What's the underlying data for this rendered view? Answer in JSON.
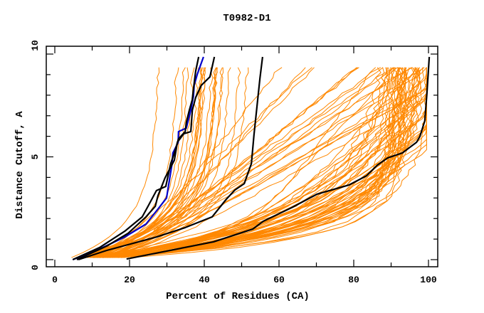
{
  "chart_data": {
    "type": "line",
    "title": "T0982-D1",
    "xlabel": "Percent of Residues (CA)",
    "ylabel": "Distance Cutoff, A",
    "xlim": [
      0,
      100
    ],
    "ylim": [
      0,
      10
    ],
    "xticks": [
      0,
      20,
      40,
      60,
      80,
      100
    ],
    "yticks": [
      0,
      5,
      10
    ],
    "grid": false,
    "legend": "none",
    "colors": {
      "background_models": "#ff8800",
      "highlight_black": "#000000",
      "highlight_blue": "#0000cc"
    },
    "series": [
      {
        "name": "highlight-blue",
        "color": "#0000cc",
        "points": [
          [
            4.8,
            0
          ],
          [
            12,
            0.52
          ],
          [
            18.7,
            1.1
          ],
          [
            24.4,
            1.73
          ],
          [
            27.6,
            2.46
          ],
          [
            29.9,
            3.0
          ],
          [
            30.3,
            3.46
          ],
          [
            31.4,
            4.67
          ],
          [
            31.6,
            5.19
          ],
          [
            33,
            5.7
          ],
          [
            33.1,
            6.23
          ],
          [
            35.2,
            6.4
          ],
          [
            36.4,
            7.27
          ],
          [
            37.1,
            7.96
          ],
          [
            37.3,
            8.48
          ],
          [
            38.1,
            9.0
          ],
          [
            39.8,
            9.86
          ]
        ]
      },
      {
        "name": "highlight-black-1",
        "color": "#000000",
        "points": [
          [
            4.8,
            0
          ],
          [
            12,
            0.59
          ],
          [
            18.7,
            1.38
          ],
          [
            23.4,
            2.08
          ],
          [
            24.95,
            2.6
          ],
          [
            27.2,
            3.36
          ],
          [
            29.7,
            3.56
          ],
          [
            31,
            4.67
          ],
          [
            32,
            5.19
          ],
          [
            33.1,
            5.88
          ],
          [
            34.9,
            6.23
          ],
          [
            35.2,
            6.68
          ],
          [
            36,
            7.27
          ],
          [
            36.8,
            7.79
          ],
          [
            37.1,
            8.3
          ],
          [
            37.7,
            9.17
          ],
          [
            38.5,
            9.86
          ]
        ]
      },
      {
        "name": "highlight-black-2",
        "color": "#000000",
        "points": [
          [
            5.9,
            0
          ],
          [
            13.9,
            0.66
          ],
          [
            19.6,
            1.28
          ],
          [
            24.4,
            2.08
          ],
          [
            26.9,
            2.6
          ],
          [
            27.6,
            3.11
          ],
          [
            29.5,
            3.98
          ],
          [
            32,
            4.84
          ],
          [
            32.8,
            5.71
          ],
          [
            34.5,
            6.12
          ],
          [
            36.4,
            6.23
          ],
          [
            36.8,
            7.27
          ],
          [
            37.7,
            7.89
          ],
          [
            39.2,
            8.48
          ],
          [
            41.5,
            8.89
          ],
          [
            42.7,
            9.86
          ]
        ]
      },
      {
        "name": "highlight-black-3",
        "color": "#000000",
        "points": [
          [
            6.3,
            0
          ],
          [
            13.9,
            0.45
          ],
          [
            27.2,
            1.1
          ],
          [
            34.9,
            1.56
          ],
          [
            42.1,
            2.08
          ],
          [
            45.9,
            2.94
          ],
          [
            48.2,
            3.39
          ],
          [
            50.7,
            3.7
          ],
          [
            51.8,
            4.26
          ],
          [
            52.6,
            4.67
          ],
          [
            53.3,
            6.06
          ],
          [
            54.1,
            7.44
          ],
          [
            54.9,
            8.82
          ],
          [
            55.6,
            9.86
          ]
        ]
      },
      {
        "name": "highlight-black-4",
        "color": "#000000",
        "points": [
          [
            19.2,
            0.03
          ],
          [
            42.5,
            0.87
          ],
          [
            53,
            1.49
          ],
          [
            55.8,
            1.87
          ],
          [
            63.4,
            2.53
          ],
          [
            70.1,
            3.18
          ],
          [
            78.7,
            3.63
          ],
          [
            83.4,
            4.08
          ],
          [
            86.3,
            4.6
          ],
          [
            89.1,
            4.95
          ],
          [
            93,
            5.19
          ],
          [
            96.8,
            5.71
          ],
          [
            97.7,
            5.99
          ],
          [
            99,
            6.75
          ],
          [
            99.6,
            8.13
          ],
          [
            100.2,
            9.86
          ]
        ]
      }
    ],
    "background_series_count": 100
  }
}
